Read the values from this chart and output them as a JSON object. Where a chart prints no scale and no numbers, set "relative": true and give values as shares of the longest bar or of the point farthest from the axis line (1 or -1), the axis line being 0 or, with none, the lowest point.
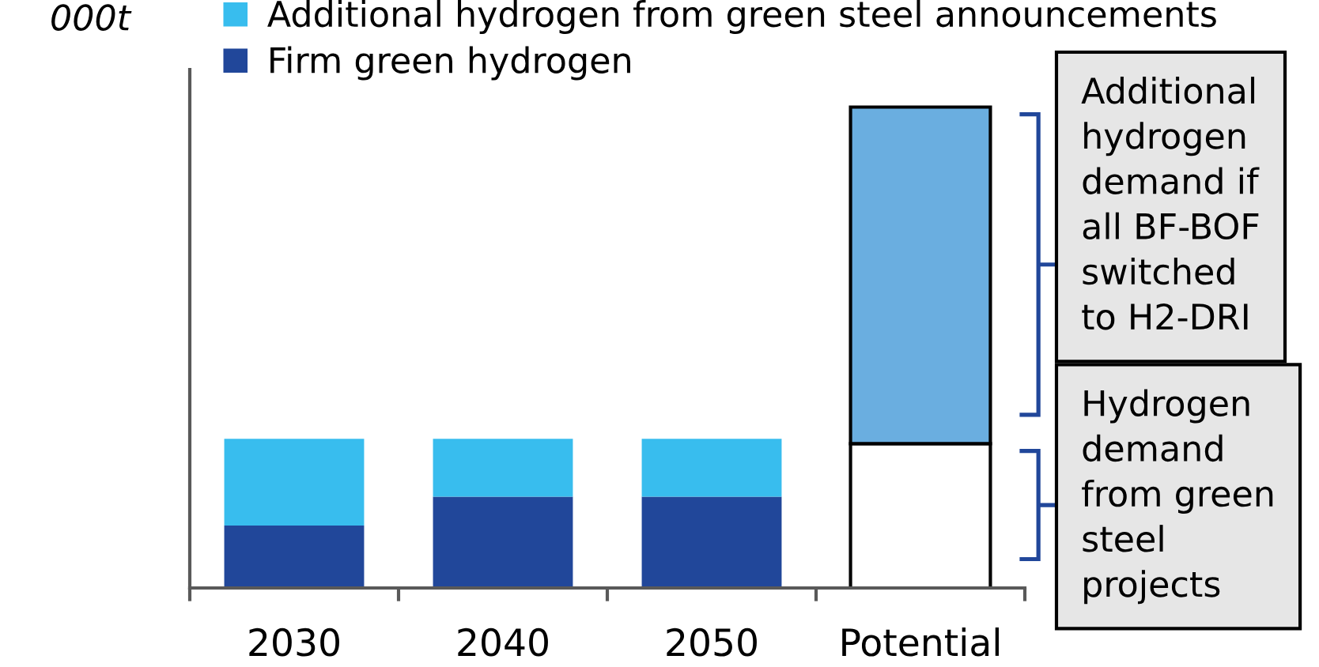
{
  "chart_data": {
    "type": "bar",
    "stacked": true,
    "relative": true,
    "ylabel": "000t",
    "categories": [
      "2030",
      "2040",
      "2050",
      "Potential"
    ],
    "series": [
      {
        "name": "Firm green hydrogen",
        "color": "#21479a",
        "colors": [
          "#21479a",
          "#21479a",
          "#21479a",
          "#ffffff"
        ],
        "values": [
          0.13,
          0.19,
          0.19,
          0.3
        ]
      },
      {
        "name": "Additional hydrogen from green steel announcements",
        "color": "#38bdee",
        "colors": [
          "#38bdee",
          "#38bdee",
          "#38bdee",
          "#6aaee0"
        ],
        "values": [
          0.18,
          0.12,
          0.12,
          0.7
        ]
      }
    ],
    "legend": "top",
    "annotations": [
      "Additional\nhydrogen\ndemand if\nall BF-BOF\nswitched\nto H2-DRI",
      "Hydrogen\ndemand\nfrom green\nsteel\nprojects"
    ]
  }
}
